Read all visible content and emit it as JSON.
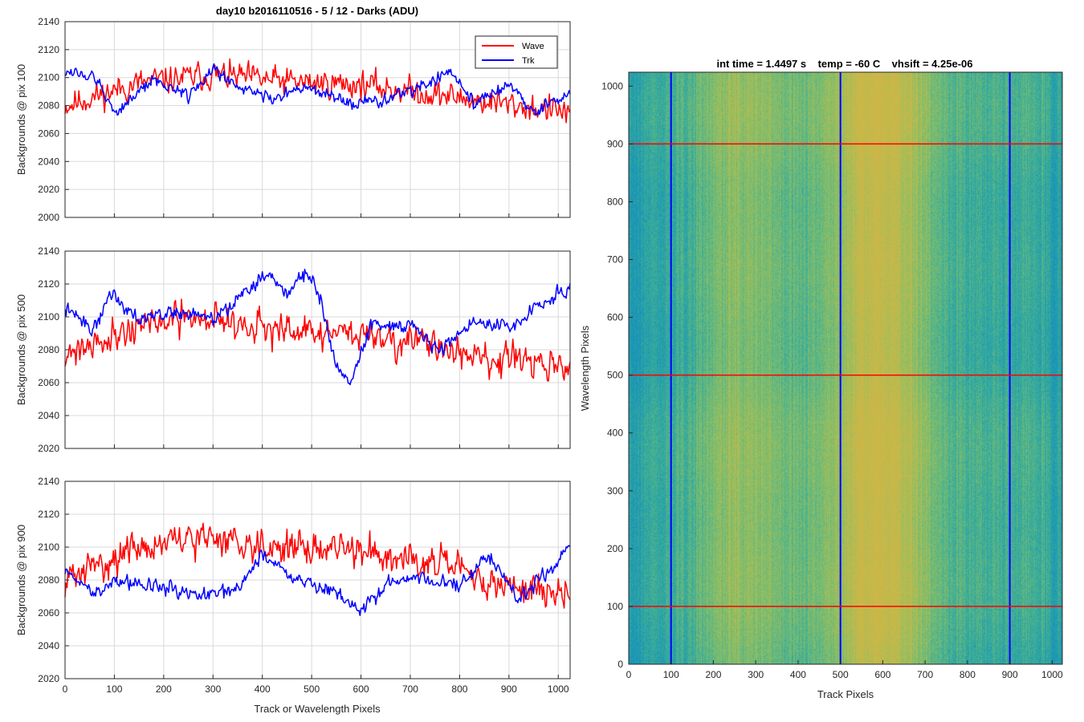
{
  "figure": {
    "title": "day10 b2016110516 - 5 / 12 - Darks (ADU)",
    "colors": {
      "wave": "#ff0000",
      "trk": "#0000ff",
      "grid": "#d9d9d9",
      "axis": "#262626"
    }
  },
  "chart_data": [
    {
      "type": "line",
      "panel": "background-pix-100",
      "title": "day10 b2016110516 - 5 / 12 - Darks (ADU)",
      "ylabel": "Backgrounds @ pix 100",
      "xlabel": "",
      "xlim": [
        0,
        1024
      ],
      "ylim": [
        2000,
        2140
      ],
      "xticks": [
        0,
        100,
        200,
        300,
        400,
        500,
        600,
        700,
        800,
        900,
        1000
      ],
      "yticks": [
        2000,
        2020,
        2040,
        2060,
        2080,
        2100,
        2120,
        2140
      ],
      "grid": true,
      "legend": "top-right",
      "series": [
        {
          "name": "Wave",
          "color": "#ff0000",
          "mean": [
            [
              0,
              2080
            ],
            [
              150,
              2096
            ],
            [
              300,
              2102
            ],
            [
              450,
              2097
            ],
            [
              600,
              2095
            ],
            [
              750,
              2088
            ],
            [
              850,
              2083
            ],
            [
              1024,
              2075
            ]
          ],
          "noise": 11,
          "seed": 11
        },
        {
          "name": "Trk",
          "color": "#0000ff",
          "mean": [
            [
              0,
              2105
            ],
            [
              60,
              2100
            ],
            [
              100,
              2075
            ],
            [
              150,
              2090
            ],
            [
              180,
              2098
            ],
            [
              250,
              2088
            ],
            [
              300,
              2105
            ],
            [
              350,
              2095
            ],
            [
              420,
              2085
            ],
            [
              480,
              2092
            ],
            [
              520,
              2090
            ],
            [
              580,
              2080
            ],
            [
              620,
              2082
            ],
            [
              700,
              2090
            ],
            [
              780,
              2105
            ],
            [
              830,
              2080
            ],
            [
              900,
              2097
            ],
            [
              950,
              2075
            ],
            [
              1024,
              2090
            ]
          ],
          "noise": 5,
          "seed": 12
        }
      ]
    },
    {
      "type": "line",
      "panel": "background-pix-500",
      "title": "",
      "ylabel": "Backgrounds @ pix 500",
      "xlabel": "",
      "xlim": [
        0,
        1024
      ],
      "ylim": [
        2020,
        2140
      ],
      "xticks": [
        0,
        100,
        200,
        300,
        400,
        500,
        600,
        700,
        800,
        900,
        1000
      ],
      "yticks": [
        2020,
        2040,
        2060,
        2080,
        2100,
        2120,
        2140
      ],
      "grid": true,
      "legend": "",
      "series": [
        {
          "name": "Wave",
          "color": "#ff0000",
          "mean": [
            [
              0,
              2078
            ],
            [
              150,
              2095
            ],
            [
              300,
              2100
            ],
            [
              450,
              2090
            ],
            [
              600,
              2090
            ],
            [
              700,
              2085
            ],
            [
              850,
              2075
            ],
            [
              1024,
              2068
            ]
          ],
          "noise": 11,
          "seed": 21
        },
        {
          "name": "Trk",
          "color": "#0000ff",
          "mean": [
            [
              0,
              2105
            ],
            [
              60,
              2092
            ],
            [
              90,
              2115
            ],
            [
              150,
              2100
            ],
            [
              250,
              2103
            ],
            [
              300,
              2098
            ],
            [
              350,
              2110
            ],
            [
              400,
              2125
            ],
            [
              450,
              2115
            ],
            [
              490,
              2128
            ],
            [
              520,
              2110
            ],
            [
              550,
              2070
            ],
            [
              580,
              2060
            ],
            [
              620,
              2095
            ],
            [
              700,
              2095
            ],
            [
              760,
              2080
            ],
            [
              830,
              2098
            ],
            [
              900,
              2092
            ],
            [
              950,
              2105
            ],
            [
              1024,
              2118
            ]
          ],
          "noise": 5,
          "seed": 22
        }
      ]
    },
    {
      "type": "line",
      "panel": "background-pix-900",
      "title": "",
      "ylabel": "Backgrounds @ pix 900",
      "xlabel": "Track or Wavelength Pixels",
      "xlim": [
        0,
        1024
      ],
      "ylim": [
        2020,
        2140
      ],
      "xticks": [
        0,
        100,
        200,
        300,
        400,
        500,
        600,
        700,
        800,
        900,
        1000
      ],
      "yticks": [
        2020,
        2040,
        2060,
        2080,
        2100,
        2120,
        2140
      ],
      "grid": true,
      "legend": "",
      "series": [
        {
          "name": "Wave",
          "color": "#ff0000",
          "mean": [
            [
              0,
              2080
            ],
            [
              150,
              2100
            ],
            [
              300,
              2106
            ],
            [
              450,
              2100
            ],
            [
              600,
              2098
            ],
            [
              750,
              2092
            ],
            [
              850,
              2078
            ],
            [
              1024,
              2072
            ]
          ],
          "noise": 11,
          "seed": 31
        },
        {
          "name": "Trk",
          "color": "#0000ff",
          "mean": [
            [
              0,
              2085
            ],
            [
              60,
              2072
            ],
            [
              100,
              2080
            ],
            [
              200,
              2075
            ],
            [
              280,
              2070
            ],
            [
              350,
              2075
            ],
            [
              400,
              2095
            ],
            [
              480,
              2080
            ],
            [
              550,
              2072
            ],
            [
              600,
              2060
            ],
            [
              650,
              2078
            ],
            [
              720,
              2082
            ],
            [
              800,
              2075
            ],
            [
              860,
              2095
            ],
            [
              920,
              2068
            ],
            [
              980,
              2085
            ],
            [
              1024,
              2100
            ]
          ],
          "noise": 5,
          "seed": 32
        }
      ]
    },
    {
      "type": "heatmap",
      "panel": "dark-frame-image",
      "title": "int time = 1.4497 s    temp = -60 C    vhsift = 4.25e-06",
      "xlabel": "Track Pixels",
      "ylabel": "Wavelength Pixels",
      "xlim": [
        0,
        1024
      ],
      "ylim": [
        0,
        1024
      ],
      "xticks": [
        0,
        100,
        200,
        300,
        400,
        500,
        600,
        700,
        800,
        900,
        1000
      ],
      "yticks": [
        0,
        100,
        200,
        300,
        400,
        500,
        600,
        700,
        800,
        900,
        1000
      ],
      "grid": false,
      "colormap": [
        "#1a93b8",
        "#31a9a0",
        "#67b97c",
        "#9cbf5c",
        "#cbb748"
      ],
      "bright_bands": [
        [
          270,
          0.9
        ],
        [
          560,
          0.85
        ],
        [
          620,
          0.75
        ],
        [
          900,
          0.25
        ]
      ],
      "vertical_markers": {
        "color": "#0000ff",
        "x": [
          100,
          500,
          900
        ]
      },
      "horizontal_markers": {
        "color": "#ff0000",
        "y": [
          100,
          500,
          900
        ]
      }
    }
  ]
}
